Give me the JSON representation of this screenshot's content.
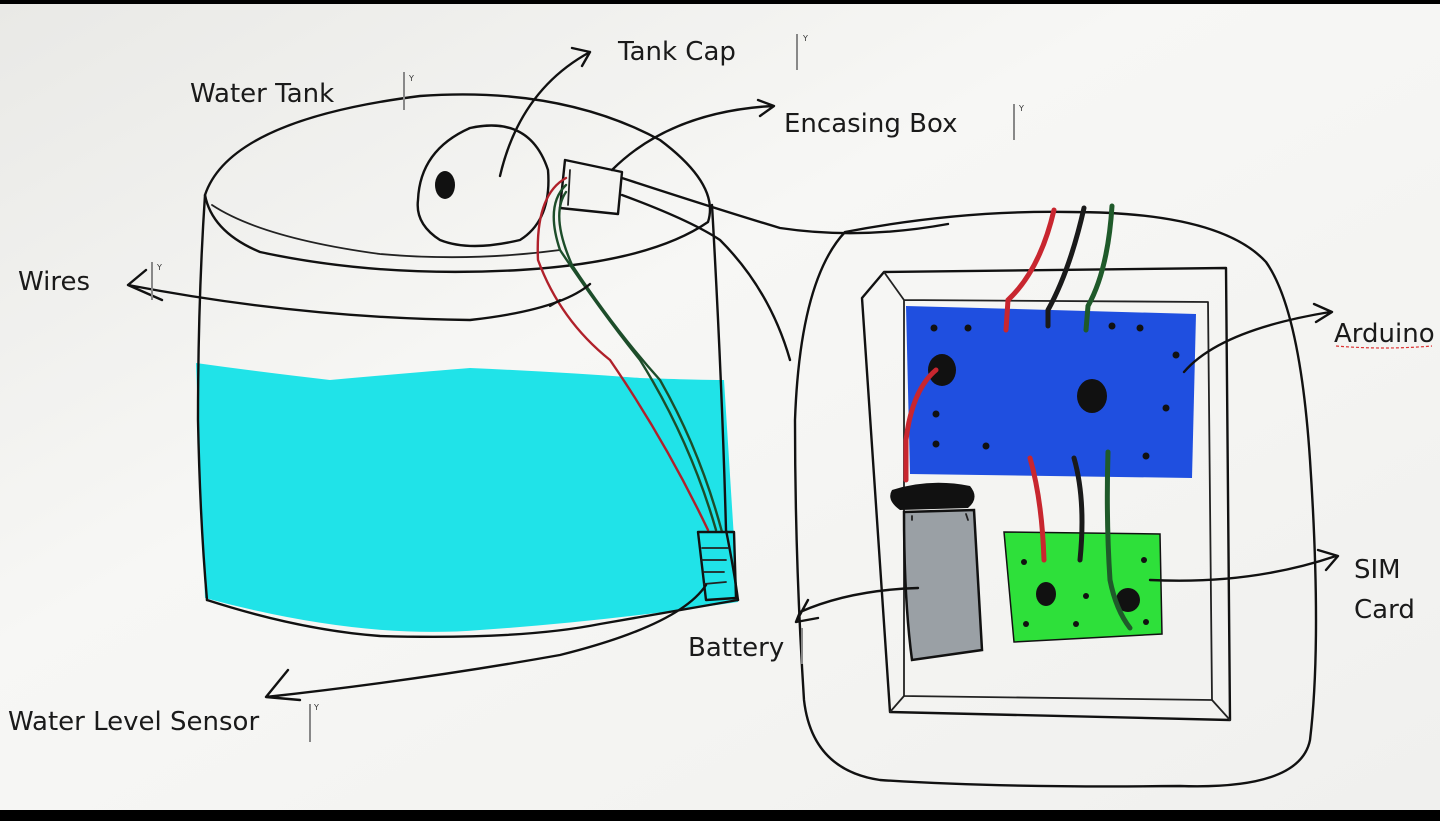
{
  "labels": {
    "tank_cap": "Tank Cap",
    "encasing_box": "Encasing Box",
    "water_tank": "Water Tank",
    "wires": "Wires",
    "arduino": "Arduino",
    "sim_card_line1": "SIM",
    "sim_card_line2": "Card",
    "battery": "Battery",
    "water_level_sensor": "Water Level Sensor"
  },
  "cursor_glyph": "Y",
  "colors": {
    "water": "#20e3e8",
    "arduino_board": "#1f4fe0",
    "sim_board": "#2ee03a",
    "battery": "#9aa0a5",
    "paper": "#f4f4f2"
  }
}
